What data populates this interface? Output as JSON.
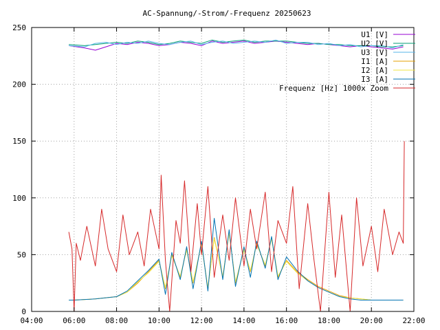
{
  "chart_data": {
    "type": "line",
    "title": "AC-Spannung/-Strom/-Frequenz 20250623",
    "xlabel": "",
    "ylabel": "",
    "xlim": [
      4,
      22
    ],
    "ylim": [
      0,
      250
    ],
    "x_ticks": [
      4,
      6,
      8,
      10,
      12,
      14,
      16,
      18,
      20,
      22
    ],
    "x_tick_labels": [
      "04:00",
      "06:00",
      "08:00",
      "10:00",
      "12:00",
      "14:00",
      "16:00",
      "18:00",
      "20:00",
      "22:00"
    ],
    "y_ticks": [
      0,
      50,
      100,
      150,
      200,
      250
    ],
    "y_tick_labels": [
      "0",
      "50",
      "100",
      "150",
      "200",
      "250"
    ],
    "grid": true,
    "legend_position": "top-right",
    "series": [
      {
        "name": "U1 [V]",
        "color": "#9400d3",
        "x": [
          5.75,
          6.5,
          7.0,
          7.5,
          8.0,
          8.5,
          9.0,
          9.5,
          10.0,
          10.5,
          11.0,
          11.5,
          12.0,
          12.5,
          13.0,
          13.5,
          14.0,
          14.5,
          15.0,
          15.5,
          16.0,
          16.5,
          17.0,
          17.5,
          18.0,
          18.5,
          19.0,
          19.5,
          20.0,
          20.5,
          21.0,
          21.5
        ],
        "y": [
          234,
          232,
          230,
          233,
          236,
          235,
          237,
          236,
          234,
          235,
          237,
          236,
          234,
          238,
          236,
          237,
          238,
          236,
          237,
          238,
          237,
          236,
          235,
          236,
          235,
          234,
          233,
          234,
          233,
          232,
          231,
          233
        ]
      },
      {
        "name": "U2 [V]",
        "color": "#009e73",
        "x": [
          5.75,
          6.5,
          7.0,
          7.5,
          8.0,
          8.5,
          9.0,
          9.5,
          10.0,
          10.5,
          11.0,
          11.5,
          12.0,
          12.5,
          13.0,
          13.5,
          14.0,
          14.5,
          15.0,
          15.5,
          16.0,
          16.5,
          17.0,
          17.5,
          18.0,
          18.5,
          19.0,
          19.5,
          20.0,
          20.5,
          21.0,
          21.5
        ],
        "y": [
          235,
          234,
          235,
          236,
          237,
          236,
          238,
          237,
          235,
          236,
          238,
          237,
          236,
          239,
          237,
          238,
          239,
          237,
          238,
          238,
          238,
          237,
          236,
          236,
          235,
          235,
          234,
          234,
          234,
          233,
          233,
          234
        ]
      },
      {
        "name": "U3 [V]",
        "color": "#56b4e9",
        "x": [
          5.75,
          6.5,
          7.0,
          7.5,
          8.0,
          8.5,
          9.0,
          9.5,
          10.0,
          10.5,
          11.0,
          11.5,
          12.0,
          12.5,
          13.0,
          13.5,
          14.0,
          14.5,
          15.0,
          15.5,
          16.0,
          16.5,
          17.0,
          17.5,
          18.0,
          18.5,
          19.0,
          19.5,
          20.0,
          20.5,
          21.0,
          21.5
        ],
        "y": [
          234,
          233,
          236,
          237,
          235,
          237,
          236,
          238,
          236,
          235,
          237,
          238,
          235,
          237,
          238,
          236,
          237,
          238,
          237,
          239,
          236,
          237,
          237,
          235,
          236,
          234,
          235,
          233,
          234,
          234,
          232,
          235
        ]
      },
      {
        "name": "I1 [A]",
        "color": "#e69f00",
        "x": [
          5.75,
          6.0,
          7.0,
          8.0,
          8.5,
          9.0,
          9.5,
          10.0,
          10.3,
          10.6,
          11.0,
          11.3,
          11.6,
          12.0,
          12.3,
          12.6,
          13.0,
          13.3,
          13.6,
          14.0,
          14.3,
          14.6,
          15.0,
          15.3,
          15.6,
          16.0,
          16.5,
          17.0,
          17.5,
          18.0,
          18.5,
          19.0,
          19.5,
          20.0,
          20.5,
          21.0,
          21.5
        ],
        "y": [
          10,
          10,
          11,
          13,
          17,
          25,
          35,
          45,
          20,
          50,
          30,
          55,
          25,
          60,
          20,
          65,
          30,
          70,
          25,
          55,
          35,
          60,
          40,
          65,
          30,
          45,
          35,
          28,
          22,
          18,
          14,
          12,
          11,
          10,
          10,
          10,
          10
        ]
      },
      {
        "name": "I2 [A]",
        "color": "#f0e442",
        "x": [
          5.75,
          6.0,
          7.0,
          8.0,
          8.5,
          9.0,
          9.5,
          10.0,
          10.3,
          10.6,
          11.0,
          11.3,
          11.6,
          12.0,
          12.3,
          12.6,
          13.0,
          13.3,
          13.6,
          14.0,
          14.3,
          14.6,
          15.0,
          15.3,
          15.6,
          16.0,
          16.5,
          17.0,
          17.5,
          18.0,
          18.5,
          19.0,
          19.5,
          20.0,
          20.5,
          21.0,
          21.5
        ],
        "y": [
          10,
          10,
          11,
          13,
          17,
          26,
          34,
          44,
          21,
          49,
          31,
          54,
          26,
          59,
          21,
          64,
          31,
          69,
          26,
          54,
          36,
          59,
          41,
          64,
          31,
          44,
          34,
          27,
          21,
          17,
          13,
          12,
          11,
          10,
          10,
          10,
          10
        ]
      },
      {
        "name": "I3 [A]",
        "color": "#0072b2",
        "x": [
          5.75,
          6.0,
          7.0,
          8.0,
          8.5,
          9.0,
          9.5,
          10.0,
          10.3,
          10.6,
          11.0,
          11.3,
          11.6,
          12.0,
          12.3,
          12.6,
          13.0,
          13.3,
          13.6,
          14.0,
          14.3,
          14.6,
          15.0,
          15.3,
          15.6,
          16.0,
          16.5,
          17.0,
          17.5,
          18.0,
          18.5,
          19.0,
          19.5,
          20.0,
          20.5,
          21.0,
          21.5
        ],
        "y": [
          10,
          10,
          11,
          13,
          18,
          27,
          36,
          46,
          15,
          52,
          28,
          57,
          20,
          62,
          18,
          82,
          28,
          72,
          22,
          57,
          30,
          62,
          38,
          66,
          28,
          48,
          36,
          27,
          21,
          17,
          13,
          11,
          10,
          10,
          10,
          10,
          10
        ]
      },
      {
        "name": "Frequenz [Hz] 1000x Zoom",
        "color": "#d62728",
        "x": [
          5.75,
          5.9,
          6.0,
          6.1,
          6.3,
          6.6,
          7.0,
          7.3,
          7.6,
          8.0,
          8.3,
          8.6,
          9.0,
          9.3,
          9.6,
          10.0,
          10.1,
          10.3,
          10.5,
          10.8,
          11.0,
          11.2,
          11.5,
          11.8,
          12.0,
          12.3,
          12.6,
          13.0,
          13.3,
          13.6,
          14.0,
          14.3,
          14.6,
          15.0,
          15.3,
          15.6,
          16.0,
          16.3,
          16.6,
          17.0,
          17.3,
          17.6,
          18.0,
          18.3,
          18.6,
          19.0,
          19.3,
          19.6,
          20.0,
          20.3,
          20.6,
          21.0,
          21.3,
          21.5,
          21.55
        ],
        "y": [
          70,
          55,
          0,
          60,
          45,
          75,
          40,
          90,
          55,
          35,
          85,
          50,
          70,
          40,
          90,
          55,
          120,
          45,
          0,
          80,
          60,
          115,
          35,
          95,
          50,
          110,
          30,
          85,
          45,
          100,
          40,
          90,
          55,
          105,
          35,
          80,
          60,
          110,
          20,
          95,
          45,
          0,
          105,
          30,
          85,
          0,
          100,
          40,
          75,
          35,
          90,
          50,
          70,
          60,
          150
        ]
      }
    ]
  }
}
